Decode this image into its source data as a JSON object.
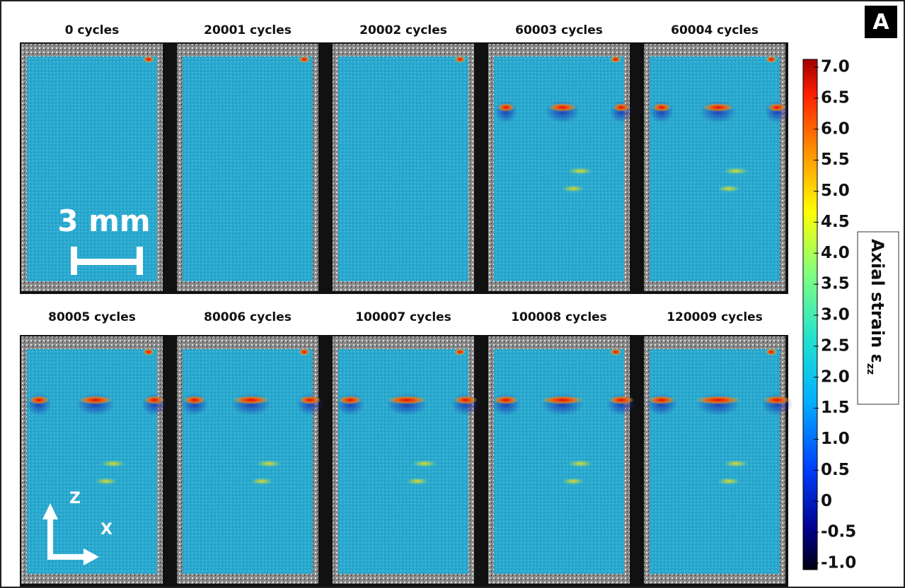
{
  "panel_label": "A",
  "panels": [
    {
      "title": "0 cycles"
    },
    {
      "title": "20001 cycles"
    },
    {
      "title": "20002 cycles"
    },
    {
      "title": "60003 cycles"
    },
    {
      "title": "60004 cycles"
    },
    {
      "title": "80005 cycles"
    },
    {
      "title": "80006 cycles"
    },
    {
      "title": "100007 cycles"
    },
    {
      "title": "100008 cycles"
    },
    {
      "title": "120009 cycles"
    }
  ],
  "scale_bar": "3 mm",
  "axes": {
    "z": "Z",
    "x": "X"
  },
  "colorbar": {
    "label": "Axial strain ε",
    "label_subscript": "zz",
    "lim": [
      -1,
      7
    ],
    "ticks": [
      {
        "value": 7,
        "label": "7.0"
      },
      {
        "value": 6.5,
        "label": "6.5"
      },
      {
        "value": 6,
        "label": "6.0"
      },
      {
        "value": 5.5,
        "label": "5.5"
      },
      {
        "value": 5,
        "label": "5.0"
      },
      {
        "value": 4.5,
        "label": "4.5"
      },
      {
        "value": 4,
        "label": "4.0"
      },
      {
        "value": 3.5,
        "label": "3.5"
      },
      {
        "value": 3,
        "label": "3.0"
      },
      {
        "value": 2.5,
        "label": "2.5"
      },
      {
        "value": 2,
        "label": "2.0"
      },
      {
        "value": 1.5,
        "label": "1.5"
      },
      {
        "value": 1,
        "label": "1.0"
      },
      {
        "value": 0.5,
        "label": "0.5"
      },
      0,
      {
        "value": -0.5,
        "label": "-0.5"
      },
      {
        "value": -1,
        "label": "-1.0"
      }
    ]
  }
}
